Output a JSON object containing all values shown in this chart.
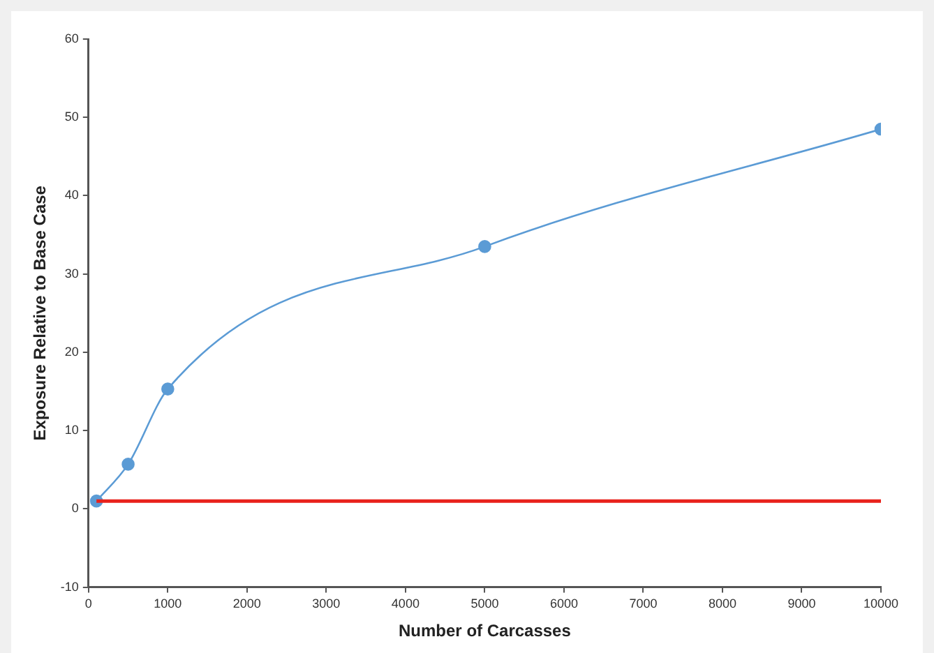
{
  "chart_data": {
    "type": "line",
    "xlabel": "Number of Carcasses",
    "ylabel": "Exposure Relative to Base Case",
    "xlim": [
      0,
      10000
    ],
    "xticks": [
      0,
      1000,
      2000,
      3000,
      4000,
      5000,
      6000,
      7000,
      8000,
      9000,
      10000
    ],
    "ylim": [
      -10,
      60
    ],
    "yticks": [
      -10,
      0,
      10,
      20,
      30,
      40,
      50,
      60
    ],
    "grid": false,
    "legend": false,
    "series": [
      {
        "color": "#5b9bd5",
        "marker": "circle",
        "x": [
          100,
          500,
          1000,
          5000,
          10000
        ],
        "values": [
          1,
          5.7,
          15.3,
          33.5,
          48.5
        ]
      },
      {
        "color": "#e8221c",
        "marker": "none",
        "x": [
          100,
          10000
        ],
        "values": [
          1,
          1
        ]
      }
    ]
  }
}
